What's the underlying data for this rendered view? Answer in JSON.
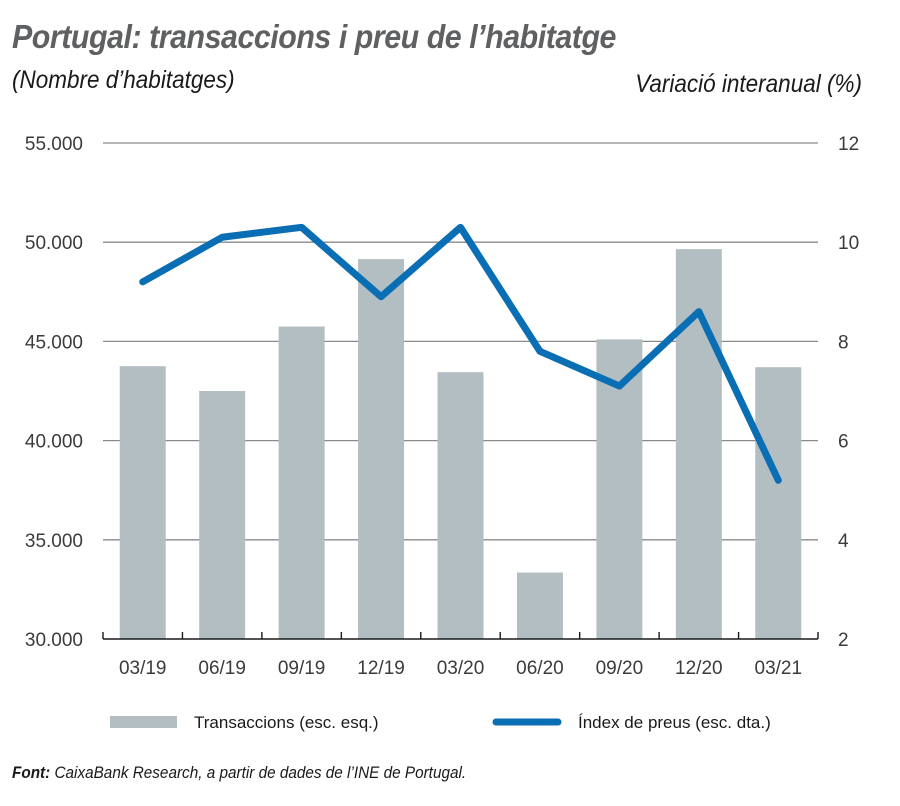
{
  "chart_data": {
    "type": "bar",
    "title": "Portugal: transaccions i preu de l’habitatge",
    "left_axis_label": "(Nombre d’habitatges)",
    "right_axis_label": "Variació interanual (%)",
    "categories": [
      "03/19",
      "06/19",
      "09/19",
      "12/19",
      "03/20",
      "06/20",
      "09/20",
      "12/20",
      "03/21"
    ],
    "series": [
      {
        "name": "Transaccions (esc. esq.)",
        "type": "bar",
        "axis": "left",
        "color": "#b3bec3",
        "values": [
          43750,
          42500,
          45750,
          49150,
          43450,
          33350,
          45100,
          49650,
          43700
        ]
      },
      {
        "name": "Índex de preus (esc. dta.)",
        "type": "line",
        "axis": "right",
        "color": "#0a6eb4",
        "values": [
          9.2,
          10.1,
          10.3,
          8.9,
          10.3,
          7.8,
          7.1,
          8.6,
          5.2
        ]
      }
    ],
    "left_axis": {
      "ylim": [
        30000,
        55000
      ],
      "ticks": [
        30000,
        35000,
        40000,
        45000,
        50000,
        55000
      ],
      "tick_labels": [
        "30.000",
        "35.000",
        "40.000",
        "45.000",
        "50.000",
        "55.000"
      ]
    },
    "right_axis": {
      "ylim": [
        2,
        12
      ],
      "ticks": [
        2,
        4,
        6,
        8,
        10,
        12
      ],
      "tick_labels": [
        "2",
        "4",
        "6",
        "8",
        "10",
        "12"
      ]
    },
    "grid": true,
    "legend": "bottom"
  },
  "source": {
    "label": "Font:",
    "text": " CaixaBank Research, a partir de dades de l’INE de Portugal."
  }
}
